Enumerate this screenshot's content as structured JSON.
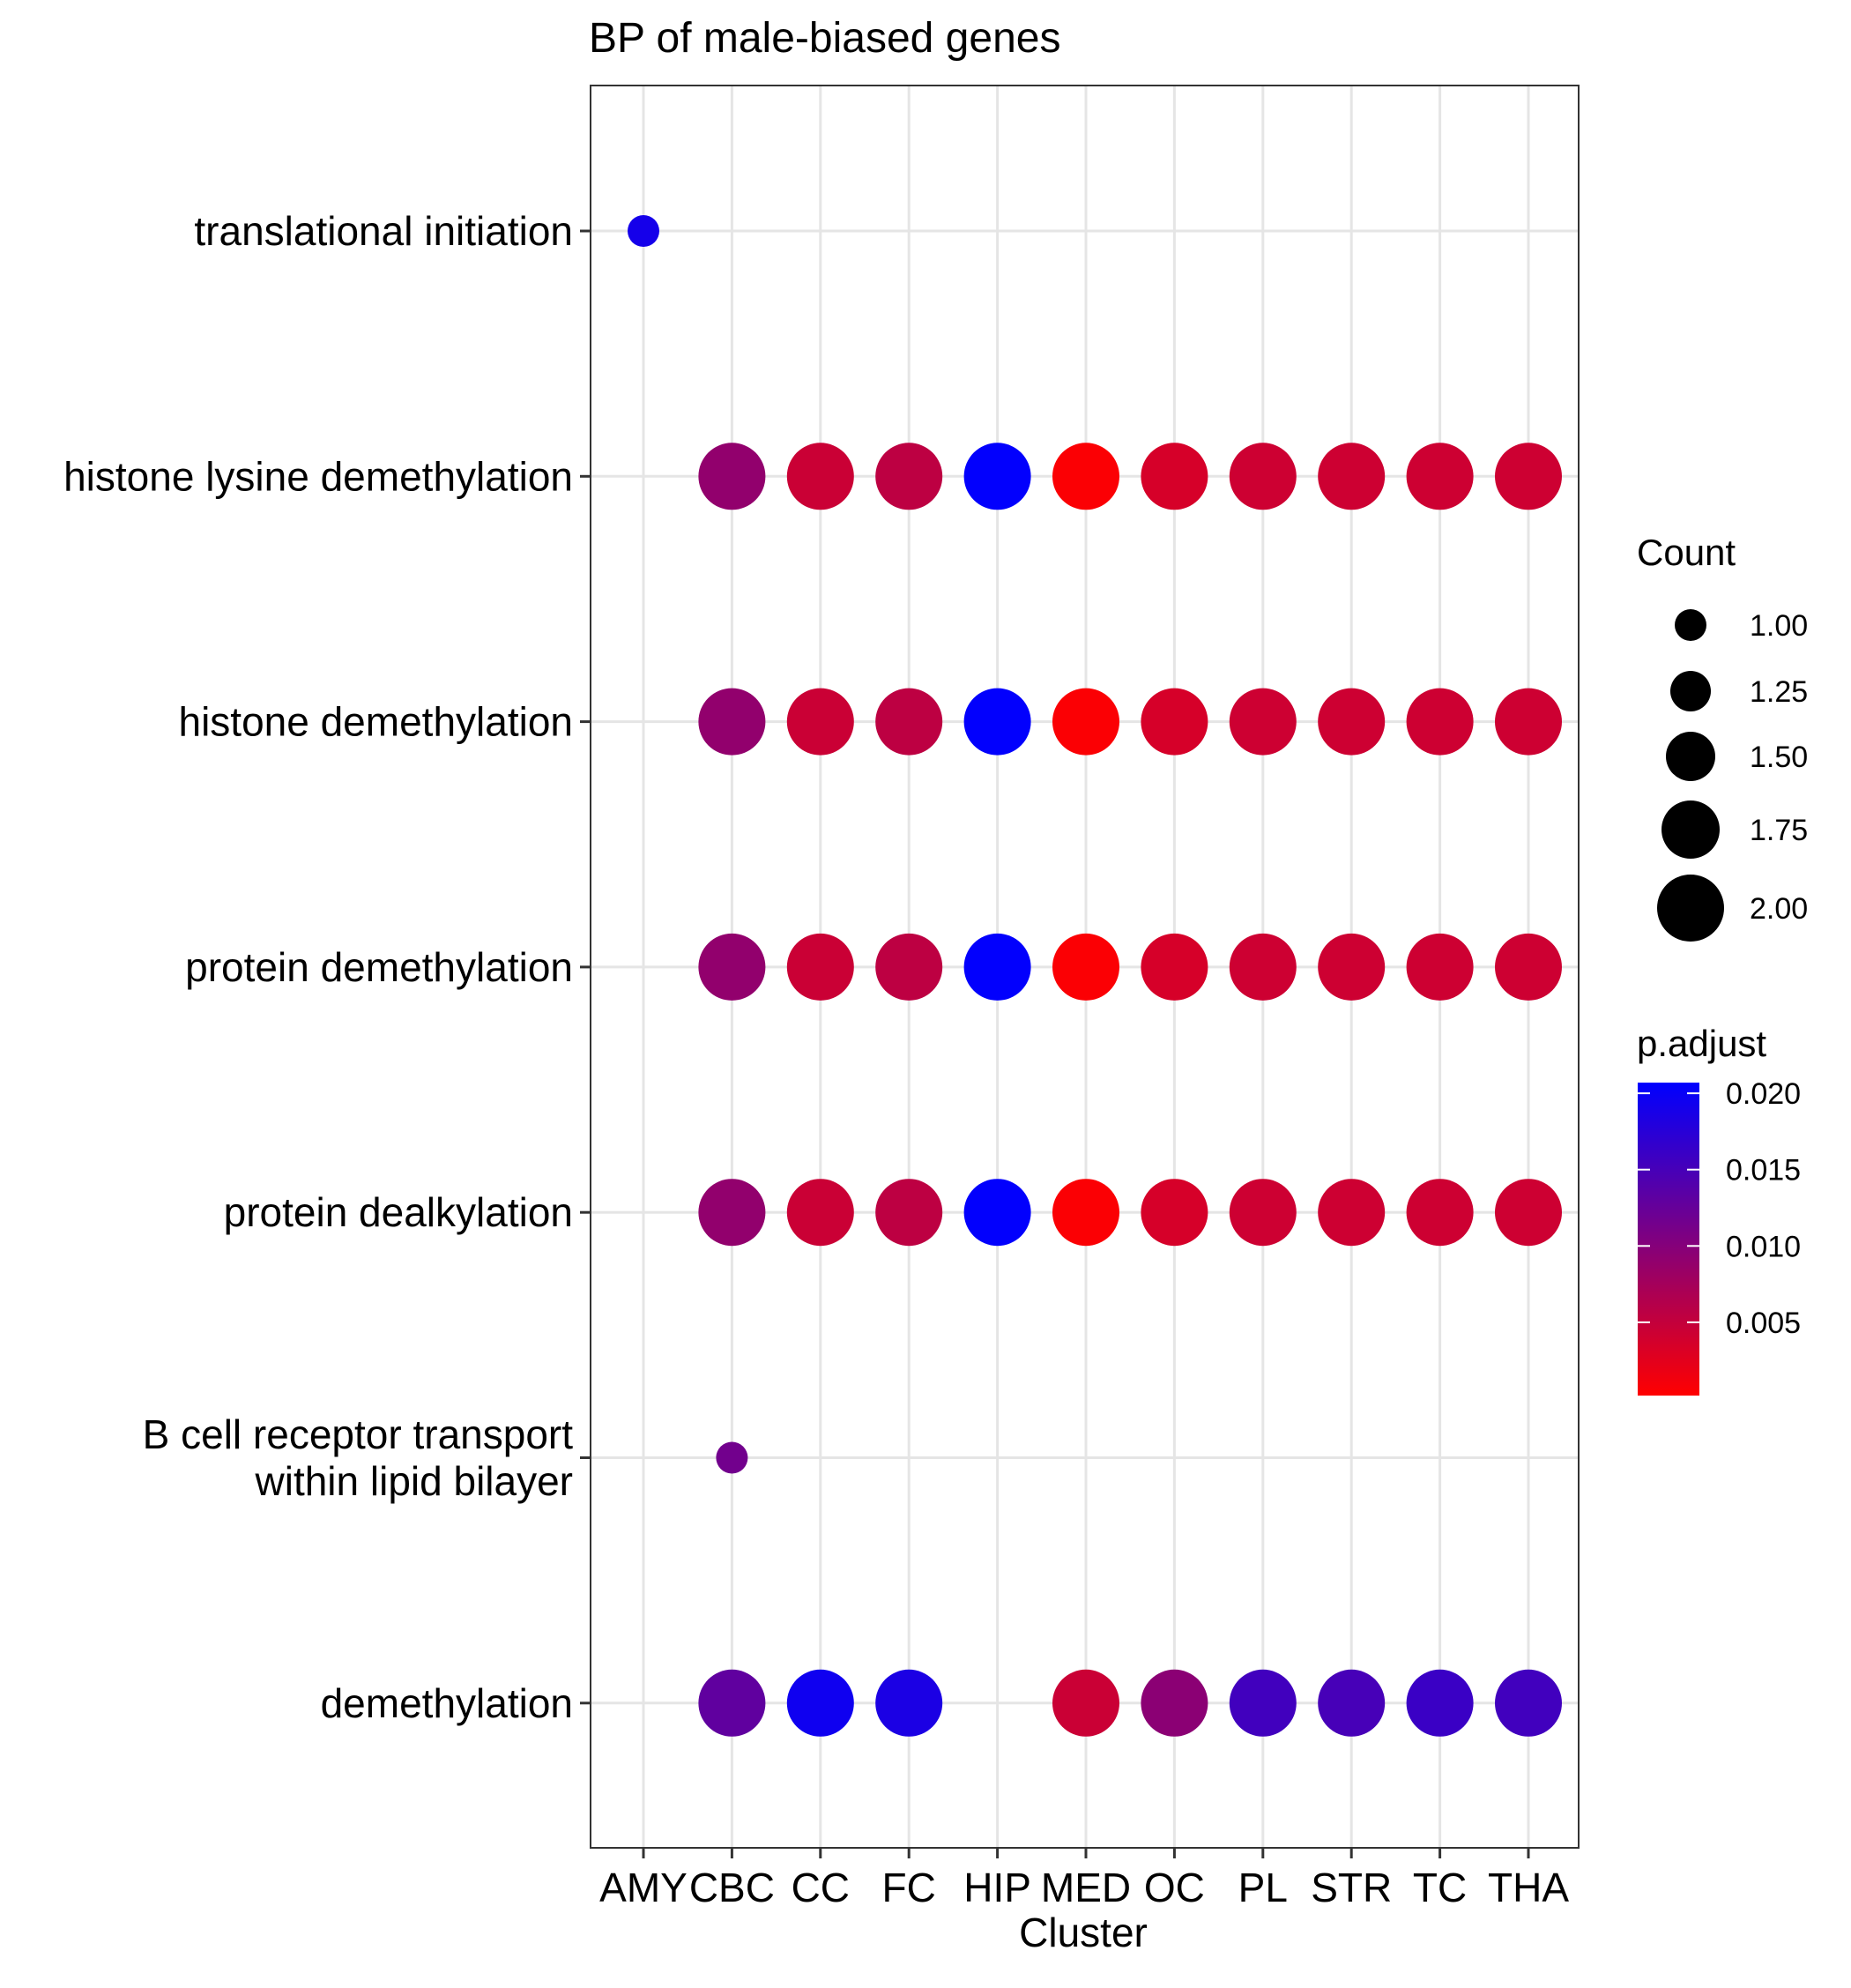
{
  "chart_data": {
    "type": "scatter",
    "title": "BP of male-biased genes",
    "xlabel": "Cluster",
    "ylabel": "",
    "categories": [
      "AMY",
      "CBC",
      "CC",
      "FC",
      "HIP",
      "MED",
      "OC",
      "PL",
      "STR",
      "TC",
      "THA"
    ],
    "rows": [
      "translational initiation",
      "histone lysine demethylation",
      "histone demethylation",
      "protein demethylation",
      "protein dealkylation",
      "B cell receptor transport\nwithin lipid bilayer",
      "demethylation"
    ],
    "row_lines": [
      [
        "translational initiation"
      ],
      [
        "histone lysine demethylation"
      ],
      [
        "histone demethylation"
      ],
      [
        "protein demethylation"
      ],
      [
        "protein dealkylation"
      ],
      [
        "B cell receptor transport",
        "within lipid bilayer"
      ],
      [
        "demethylation"
      ]
    ],
    "points": [
      {
        "cluster": "AMY",
        "term": 0,
        "count": 1,
        "p_adjust": 0.019
      },
      {
        "cluster": "CBC",
        "term": 1,
        "count": 2,
        "p_adjust": 0.009
      },
      {
        "cluster": "CC",
        "term": 1,
        "count": 2,
        "p_adjust": 0.0045
      },
      {
        "cluster": "FC",
        "term": 1,
        "count": 2,
        "p_adjust": 0.0055
      },
      {
        "cluster": "HIP",
        "term": 1,
        "count": 2,
        "p_adjust": 0.0205
      },
      {
        "cluster": "MED",
        "term": 1,
        "count": 2,
        "p_adjust": 0.0005
      },
      {
        "cluster": "OC",
        "term": 1,
        "count": 2,
        "p_adjust": 0.0035
      },
      {
        "cluster": "PL",
        "term": 1,
        "count": 2,
        "p_adjust": 0.0042
      },
      {
        "cluster": "STR",
        "term": 1,
        "count": 2,
        "p_adjust": 0.0042
      },
      {
        "cluster": "TC",
        "term": 1,
        "count": 2,
        "p_adjust": 0.0042
      },
      {
        "cluster": "THA",
        "term": 1,
        "count": 2,
        "p_adjust": 0.0042
      },
      {
        "cluster": "CBC",
        "term": 2,
        "count": 2,
        "p_adjust": 0.009
      },
      {
        "cluster": "CC",
        "term": 2,
        "count": 2,
        "p_adjust": 0.0045
      },
      {
        "cluster": "FC",
        "term": 2,
        "count": 2,
        "p_adjust": 0.0055
      },
      {
        "cluster": "HIP",
        "term": 2,
        "count": 2,
        "p_adjust": 0.0205
      },
      {
        "cluster": "MED",
        "term": 2,
        "count": 2,
        "p_adjust": 0.0005
      },
      {
        "cluster": "OC",
        "term": 2,
        "count": 2,
        "p_adjust": 0.0035
      },
      {
        "cluster": "PL",
        "term": 2,
        "count": 2,
        "p_adjust": 0.0042
      },
      {
        "cluster": "STR",
        "term": 2,
        "count": 2,
        "p_adjust": 0.0042
      },
      {
        "cluster": "TC",
        "term": 2,
        "count": 2,
        "p_adjust": 0.0042
      },
      {
        "cluster": "THA",
        "term": 2,
        "count": 2,
        "p_adjust": 0.0042
      },
      {
        "cluster": "CBC",
        "term": 3,
        "count": 2,
        "p_adjust": 0.009
      },
      {
        "cluster": "CC",
        "term": 3,
        "count": 2,
        "p_adjust": 0.0045
      },
      {
        "cluster": "FC",
        "term": 3,
        "count": 2,
        "p_adjust": 0.0055
      },
      {
        "cluster": "HIP",
        "term": 3,
        "count": 2,
        "p_adjust": 0.0205
      },
      {
        "cluster": "MED",
        "term": 3,
        "count": 2,
        "p_adjust": 0.0005
      },
      {
        "cluster": "OC",
        "term": 3,
        "count": 2,
        "p_adjust": 0.0035
      },
      {
        "cluster": "PL",
        "term": 3,
        "count": 2,
        "p_adjust": 0.0042
      },
      {
        "cluster": "STR",
        "term": 3,
        "count": 2,
        "p_adjust": 0.0042
      },
      {
        "cluster": "TC",
        "term": 3,
        "count": 2,
        "p_adjust": 0.0042
      },
      {
        "cluster": "THA",
        "term": 3,
        "count": 2,
        "p_adjust": 0.0042
      },
      {
        "cluster": "CBC",
        "term": 4,
        "count": 2,
        "p_adjust": 0.009
      },
      {
        "cluster": "CC",
        "term": 4,
        "count": 2,
        "p_adjust": 0.0045
      },
      {
        "cluster": "FC",
        "term": 4,
        "count": 2,
        "p_adjust": 0.0055
      },
      {
        "cluster": "HIP",
        "term": 4,
        "count": 2,
        "p_adjust": 0.0205
      },
      {
        "cluster": "MED",
        "term": 4,
        "count": 2,
        "p_adjust": 0.0005
      },
      {
        "cluster": "OC",
        "term": 4,
        "count": 2,
        "p_adjust": 0.0035
      },
      {
        "cluster": "PL",
        "term": 4,
        "count": 2,
        "p_adjust": 0.0042
      },
      {
        "cluster": "STR",
        "term": 4,
        "count": 2,
        "p_adjust": 0.0042
      },
      {
        "cluster": "TC",
        "term": 4,
        "count": 2,
        "p_adjust": 0.0042
      },
      {
        "cluster": "THA",
        "term": 4,
        "count": 2,
        "p_adjust": 0.0042
      },
      {
        "cluster": "CBC",
        "term": 5,
        "count": 1,
        "p_adjust": 0.0115
      },
      {
        "cluster": "CBC",
        "term": 6,
        "count": 2,
        "p_adjust": 0.013
      },
      {
        "cluster": "CC",
        "term": 6,
        "count": 2,
        "p_adjust": 0.0195
      },
      {
        "cluster": "FC",
        "term": 6,
        "count": 2,
        "p_adjust": 0.0185
      },
      {
        "cluster": "MED",
        "term": 6,
        "count": 2,
        "p_adjust": 0.0045
      },
      {
        "cluster": "OC",
        "term": 6,
        "count": 2,
        "p_adjust": 0.0095
      },
      {
        "cluster": "PL",
        "term": 6,
        "count": 2,
        "p_adjust": 0.0155
      },
      {
        "cluster": "STR",
        "term": 6,
        "count": 2,
        "p_adjust": 0.015
      },
      {
        "cluster": "TC",
        "term": 6,
        "count": 2,
        "p_adjust": 0.016
      },
      {
        "cluster": "THA",
        "term": 6,
        "count": 2,
        "p_adjust": 0.0155
      }
    ],
    "size_legend": {
      "title": "Count",
      "breaks": [
        1.0,
        1.25,
        1.5,
        1.75,
        2.0
      ],
      "labels": [
        "1.00",
        "1.25",
        "1.50",
        "1.75",
        "2.00"
      ]
    },
    "color_legend": {
      "title": "p.adjust",
      "low_color": "#ff0000",
      "high_color": "#0000ff",
      "range": [
        0.0002,
        0.0207
      ],
      "breaks": [
        0.005,
        0.01,
        0.015,
        0.02
      ],
      "labels": [
        "0.005",
        "0.010",
        "0.015",
        "0.020"
      ]
    },
    "grid": true,
    "legend_position": "right"
  }
}
